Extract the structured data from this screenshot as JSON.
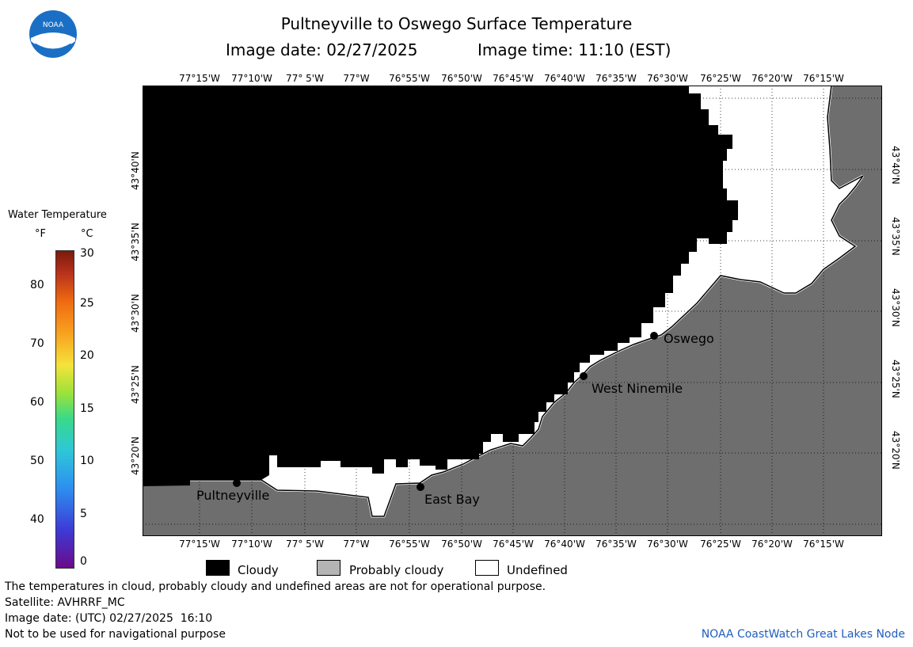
{
  "header": {
    "title": "Pultneyville to Oswego Surface Temperature",
    "date_label": "Image date: 02/27/2025",
    "time_label": "Image time: 11:10 (EST)"
  },
  "logo": {
    "text": "NOAA",
    "icon": "noaa-logo-icon",
    "color": "#1a6fc4"
  },
  "legend": {
    "title": "Water Temperature",
    "unit_f": "°F",
    "unit_c": "°C",
    "f_ticks": [
      "80",
      "70",
      "60",
      "50",
      "40"
    ],
    "c_ticks": [
      "30",
      "25",
      "20",
      "15",
      "10",
      "5",
      "0"
    ],
    "ramp_colors": [
      "#6a0a8a",
      "#3d3bd6",
      "#2d8ef0",
      "#2ec7d8",
      "#38d98a",
      "#9be23a",
      "#f4e33b",
      "#f8a21f",
      "#f06a12",
      "#b8321b",
      "#7a1a0c"
    ]
  },
  "map": {
    "lon_labels": [
      "77°15'W",
      "77°10'W",
      "77° 5'W",
      "77°W",
      "76°55'W",
      "76°50'W",
      "76°45'W",
      "76°40'W",
      "76°35'W",
      "76°30'W",
      "76°25'W",
      "76°20'W",
      "76°15'W"
    ],
    "lat_labels": [
      "43°40'N",
      "43°35'N",
      "43°30'N",
      "43°25'N",
      "43°20'N"
    ],
    "places": {
      "oswego": "Oswego",
      "west_ninemile": "West Ninemile",
      "east_bay": "East Bay",
      "pultneyville": "Pultneyville"
    },
    "colors": {
      "cloudy": "#000000",
      "land": "#6e6e6e",
      "undefined": "#ffffff"
    }
  },
  "key": {
    "cloudy": "Cloudy",
    "probably_cloudy": "Probably cloudy",
    "undefined": "Undefined",
    "probably_cloudy_color": "#b4b4b4"
  },
  "footer": {
    "disclaimer": "The temperatures in cloud, probably cloudy and undefined areas are not for operational purpose.",
    "satellite": "Satellite: AVHRRF_MC",
    "utc_date": "Image date: (UTC) 02/27/2025  16:10",
    "nav_warning": "Not to be used for navigational purpose",
    "credit": "NOAA CoastWatch Great Lakes Node",
    "credit_color": "#1f5fbf"
  }
}
